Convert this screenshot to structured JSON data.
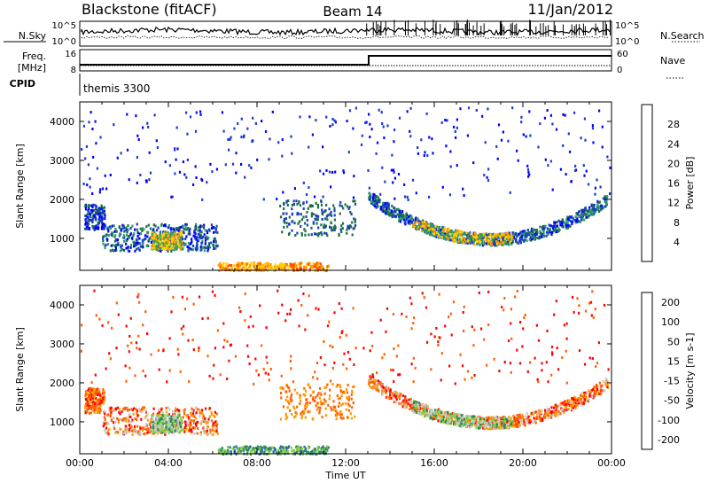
{
  "header": {
    "title_left": "Blackstone (fitACF)",
    "title_center": "Beam 14",
    "title_right": "11/Jan/2012"
  },
  "noise_panel": {
    "left_label": "N.Sky",
    "right_label": "N.Search",
    "left_ticks": [
      "10^5",
      "10^0"
    ],
    "right_ticks": [
      "10^5",
      "10^0"
    ]
  },
  "freq_panel": {
    "left_label_top": "Freq.",
    "left_label_bottom": "[MHz]",
    "right_label": "Nave",
    "left_ticks": [
      "16",
      "8"
    ],
    "right_ticks": [
      "60",
      "0"
    ]
  },
  "cpid": {
    "label": "CPID",
    "text": "themis 3300"
  },
  "chart_data": [
    {
      "type": "heatmap",
      "name": "power",
      "ylabel": "Slant Range [km]",
      "yticks": [
        "4000",
        "3000",
        "2000",
        "1000"
      ],
      "ylim": [
        180,
        4500
      ],
      "colorbar_label": "Power [dB]",
      "colorbar_ticks": [
        "28",
        "24",
        "20",
        "16",
        "12",
        "8",
        "4"
      ],
      "colorbar_colors": [
        "#ff0000",
        "#ff5000",
        "#ff9900",
        "#ffd000",
        "#2f9a6a",
        "#1a7040",
        "#1a3ad0",
        "#0000ff"
      ],
      "show_xticklabels": false
    },
    {
      "type": "heatmap",
      "name": "velocity",
      "ylabel": "Slant Range [km]",
      "yticks": [
        "4000",
        "3000",
        "2000",
        "1000"
      ],
      "ylim": [
        180,
        4500
      ],
      "colorbar_label": "Velocity [m s-1]",
      "colorbar_ticks": [
        "200",
        "100",
        "50",
        "15",
        "-15",
        "-50",
        "-100",
        "-200"
      ],
      "colorbar_colors": [
        "#2a3fb3",
        "#2e6cb0",
        "#2f8a5a",
        "#88d040",
        "#c8c8c8",
        "#ff9a00",
        "#ff6000",
        "#ff0000"
      ],
      "xlabel": "Time UT",
      "xticks": [
        "00:00",
        "04:00",
        "08:00",
        "12:00",
        "16:00",
        "20:00",
        "00:00"
      ],
      "xlim_hours": [
        0,
        24
      ]
    }
  ]
}
